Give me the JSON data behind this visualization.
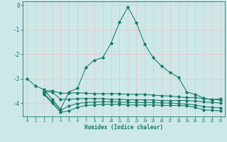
{
  "xlabel": "Humidex (Indice chaleur)",
  "bg_color": "#cce8e8",
  "grid_color": "#e8c8c8",
  "line_color": "#1a7a6a",
  "xlim": [
    -0.5,
    23.5
  ],
  "ylim": [
    -4.55,
    0.15
  ],
  "yticks": [
    0,
    -1,
    -2,
    -3,
    -4
  ],
  "xticks": [
    0,
    1,
    2,
    3,
    4,
    5,
    6,
    7,
    8,
    9,
    10,
    11,
    12,
    13,
    14,
    15,
    16,
    17,
    18,
    19,
    20,
    21,
    22,
    23
  ],
  "series1_x": [
    0,
    1,
    2,
    3,
    4,
    5,
    6,
    7,
    8,
    9,
    10,
    11,
    12,
    13,
    14,
    15,
    16,
    17,
    18,
    19,
    20,
    21,
    22,
    23
  ],
  "series1_y": [
    -3.0,
    -3.3,
    -3.45,
    -3.85,
    -4.25,
    -3.55,
    -3.4,
    -2.55,
    -2.25,
    -2.15,
    -1.55,
    -0.7,
    -0.08,
    -0.72,
    -1.6,
    -2.15,
    -2.5,
    -2.75,
    -2.95,
    -3.55,
    -3.65,
    -3.8,
    -3.88,
    -3.82
  ],
  "series2_x": [
    2,
    3,
    4,
    5,
    6,
    7,
    8,
    9,
    10,
    11,
    12,
    13,
    14,
    15,
    16,
    17,
    18,
    19,
    20,
    21,
    22,
    23
  ],
  "series2_y": [
    -3.5,
    -3.5,
    -3.6,
    -3.6,
    -3.58,
    -3.6,
    -3.62,
    -3.62,
    -3.62,
    -3.62,
    -3.65,
    -3.65,
    -3.65,
    -3.68,
    -3.7,
    -3.72,
    -3.75,
    -3.78,
    -3.78,
    -3.82,
    -3.85,
    -3.88
  ],
  "series3_x": [
    2,
    3,
    4,
    5,
    6,
    7,
    8,
    9,
    10,
    11,
    12,
    13,
    14,
    15,
    16,
    17,
    18,
    19,
    20,
    21,
    22,
    23
  ],
  "series3_y": [
    -3.55,
    -3.55,
    -3.85,
    -3.85,
    -3.82,
    -3.82,
    -3.82,
    -3.82,
    -3.85,
    -3.85,
    -3.87,
    -3.87,
    -3.87,
    -3.88,
    -3.9,
    -3.9,
    -3.9,
    -3.9,
    -3.92,
    -3.95,
    -3.98,
    -4.0
  ],
  "series4_x": [
    2,
    3,
    4,
    5,
    6,
    7,
    8,
    9,
    10,
    11,
    12,
    13,
    14,
    15,
    16,
    17,
    18,
    19,
    20,
    21,
    22,
    23
  ],
  "series4_y": [
    -3.6,
    -3.95,
    -4.3,
    -4.12,
    -4.02,
    -3.98,
    -3.96,
    -3.95,
    -3.95,
    -3.96,
    -3.98,
    -3.98,
    -3.98,
    -3.98,
    -4.0,
    -4.0,
    -4.02,
    -4.05,
    -4.08,
    -4.15,
    -4.18,
    -4.2
  ],
  "series5_x": [
    2,
    3,
    4,
    5,
    6,
    7,
    8,
    9,
    10,
    11,
    12,
    13,
    14,
    15,
    16,
    17,
    18,
    19,
    20,
    21,
    22,
    23
  ],
  "series5_y": [
    -3.65,
    -4.0,
    -4.38,
    -4.32,
    -4.18,
    -4.1,
    -4.08,
    -4.06,
    -4.06,
    -4.06,
    -4.08,
    -4.08,
    -4.08,
    -4.08,
    -4.1,
    -4.1,
    -4.1,
    -4.12,
    -4.18,
    -4.28,
    -4.3,
    -4.32
  ]
}
